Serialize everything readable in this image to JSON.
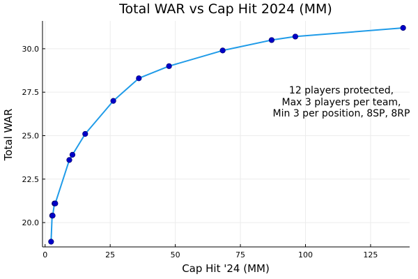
{
  "chart_data": {
    "type": "line",
    "title": "Total WAR vs Cap Hit 2024 (MM)",
    "xlabel": "Cap Hit '24 (MM)",
    "ylabel": "Total WAR",
    "xlim": [
      -1,
      140
    ],
    "ylim": [
      18.6,
      31.6
    ],
    "xticks": [
      0,
      25,
      50,
      75,
      100,
      125
    ],
    "xtick_labels": [
      "0",
      "25",
      "50",
      "75",
      "100",
      "125"
    ],
    "yticks": [
      20.0,
      22.5,
      25.0,
      27.5,
      30.0
    ],
    "ytick_labels": [
      "20.0",
      "22.5",
      "25.0",
      "27.5",
      "30.0"
    ],
    "grid": true,
    "legend": "none",
    "line_color": "#1f9be8",
    "marker_color": "#0000c8",
    "x": [
      2.3,
      2.7,
      2.9,
      3.6,
      3.9,
      9.3,
      10.5,
      15.4,
      26.2,
      36.0,
      47.6,
      68.2,
      87.0,
      96.1,
      137.5
    ],
    "y": [
      18.9,
      20.4,
      20.4,
      21.1,
      21.1,
      23.6,
      23.9,
      25.1,
      27.0,
      28.3,
      29.0,
      29.9,
      30.5,
      30.7,
      31.2
    ],
    "annotation": [
      "12 players protected,",
      "Max 3 players per team,",
      "Min 3 per position, 8SP, 8RP"
    ]
  }
}
